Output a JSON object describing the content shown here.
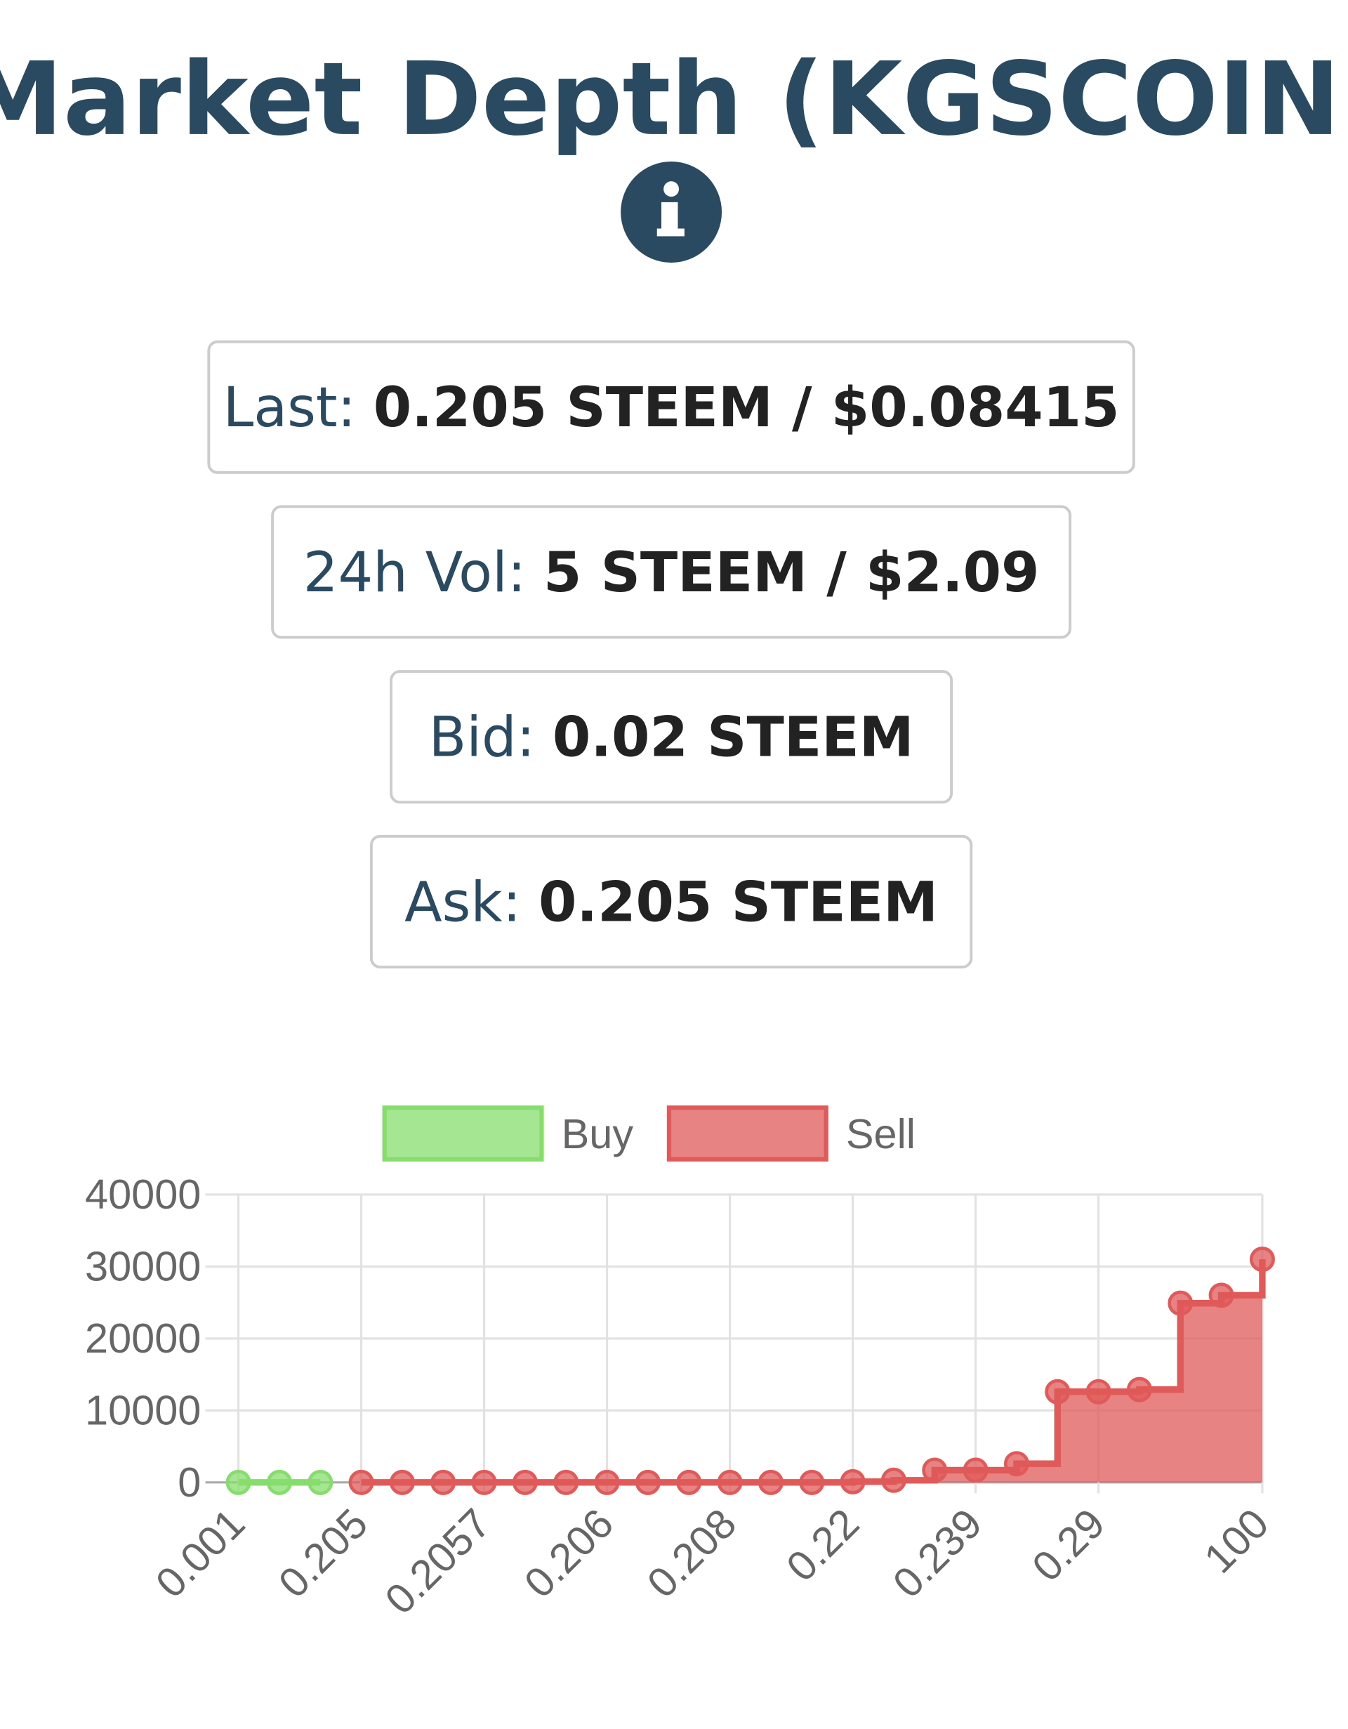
{
  "header": {
    "title": "Market Depth (KGSCOIN)"
  },
  "stats": [
    {
      "label": "Last:",
      "value": "0.205 STEEM / $0.08415"
    },
    {
      "label": "24h Vol:",
      "value": "5 STEEM / $2.09"
    },
    {
      "label": "Bid:",
      "value": "0.02 STEEM"
    },
    {
      "label": "Ask:",
      "value": "0.205 STEEM"
    }
  ],
  "chart_data": {
    "type": "line",
    "categories": [
      "0.001",
      null,
      null,
      "0.205",
      null,
      null,
      "0.2057",
      null,
      null,
      "0.206",
      null,
      null,
      "0.208",
      null,
      null,
      "0.22",
      null,
      null,
      "0.239",
      null,
      null,
      "0.29",
      null,
      null,
      null,
      "100"
    ],
    "series": [
      {
        "name": "Buy",
        "color": "#86dd6c",
        "values": [
          0,
          0,
          0,
          null,
          null,
          null,
          null,
          null,
          null,
          null,
          null,
          null,
          null,
          null,
          null,
          null,
          null,
          null,
          null,
          null,
          null,
          null,
          null,
          null,
          null,
          null
        ]
      },
      {
        "name": "Sell",
        "color": "#e05a5a",
        "values": [
          null,
          null,
          null,
          0,
          0,
          0,
          0,
          0,
          0,
          0,
          0,
          0,
          0,
          0,
          0,
          100,
          300,
          1700,
          1700,
          2600,
          12600,
          12600,
          12900,
          24900,
          26000,
          31000
        ]
      }
    ],
    "ylim": [
      0,
      40000
    ],
    "yticks": [
      0,
      10000,
      20000,
      30000,
      40000
    ],
    "grid": true,
    "legend": "top"
  }
}
